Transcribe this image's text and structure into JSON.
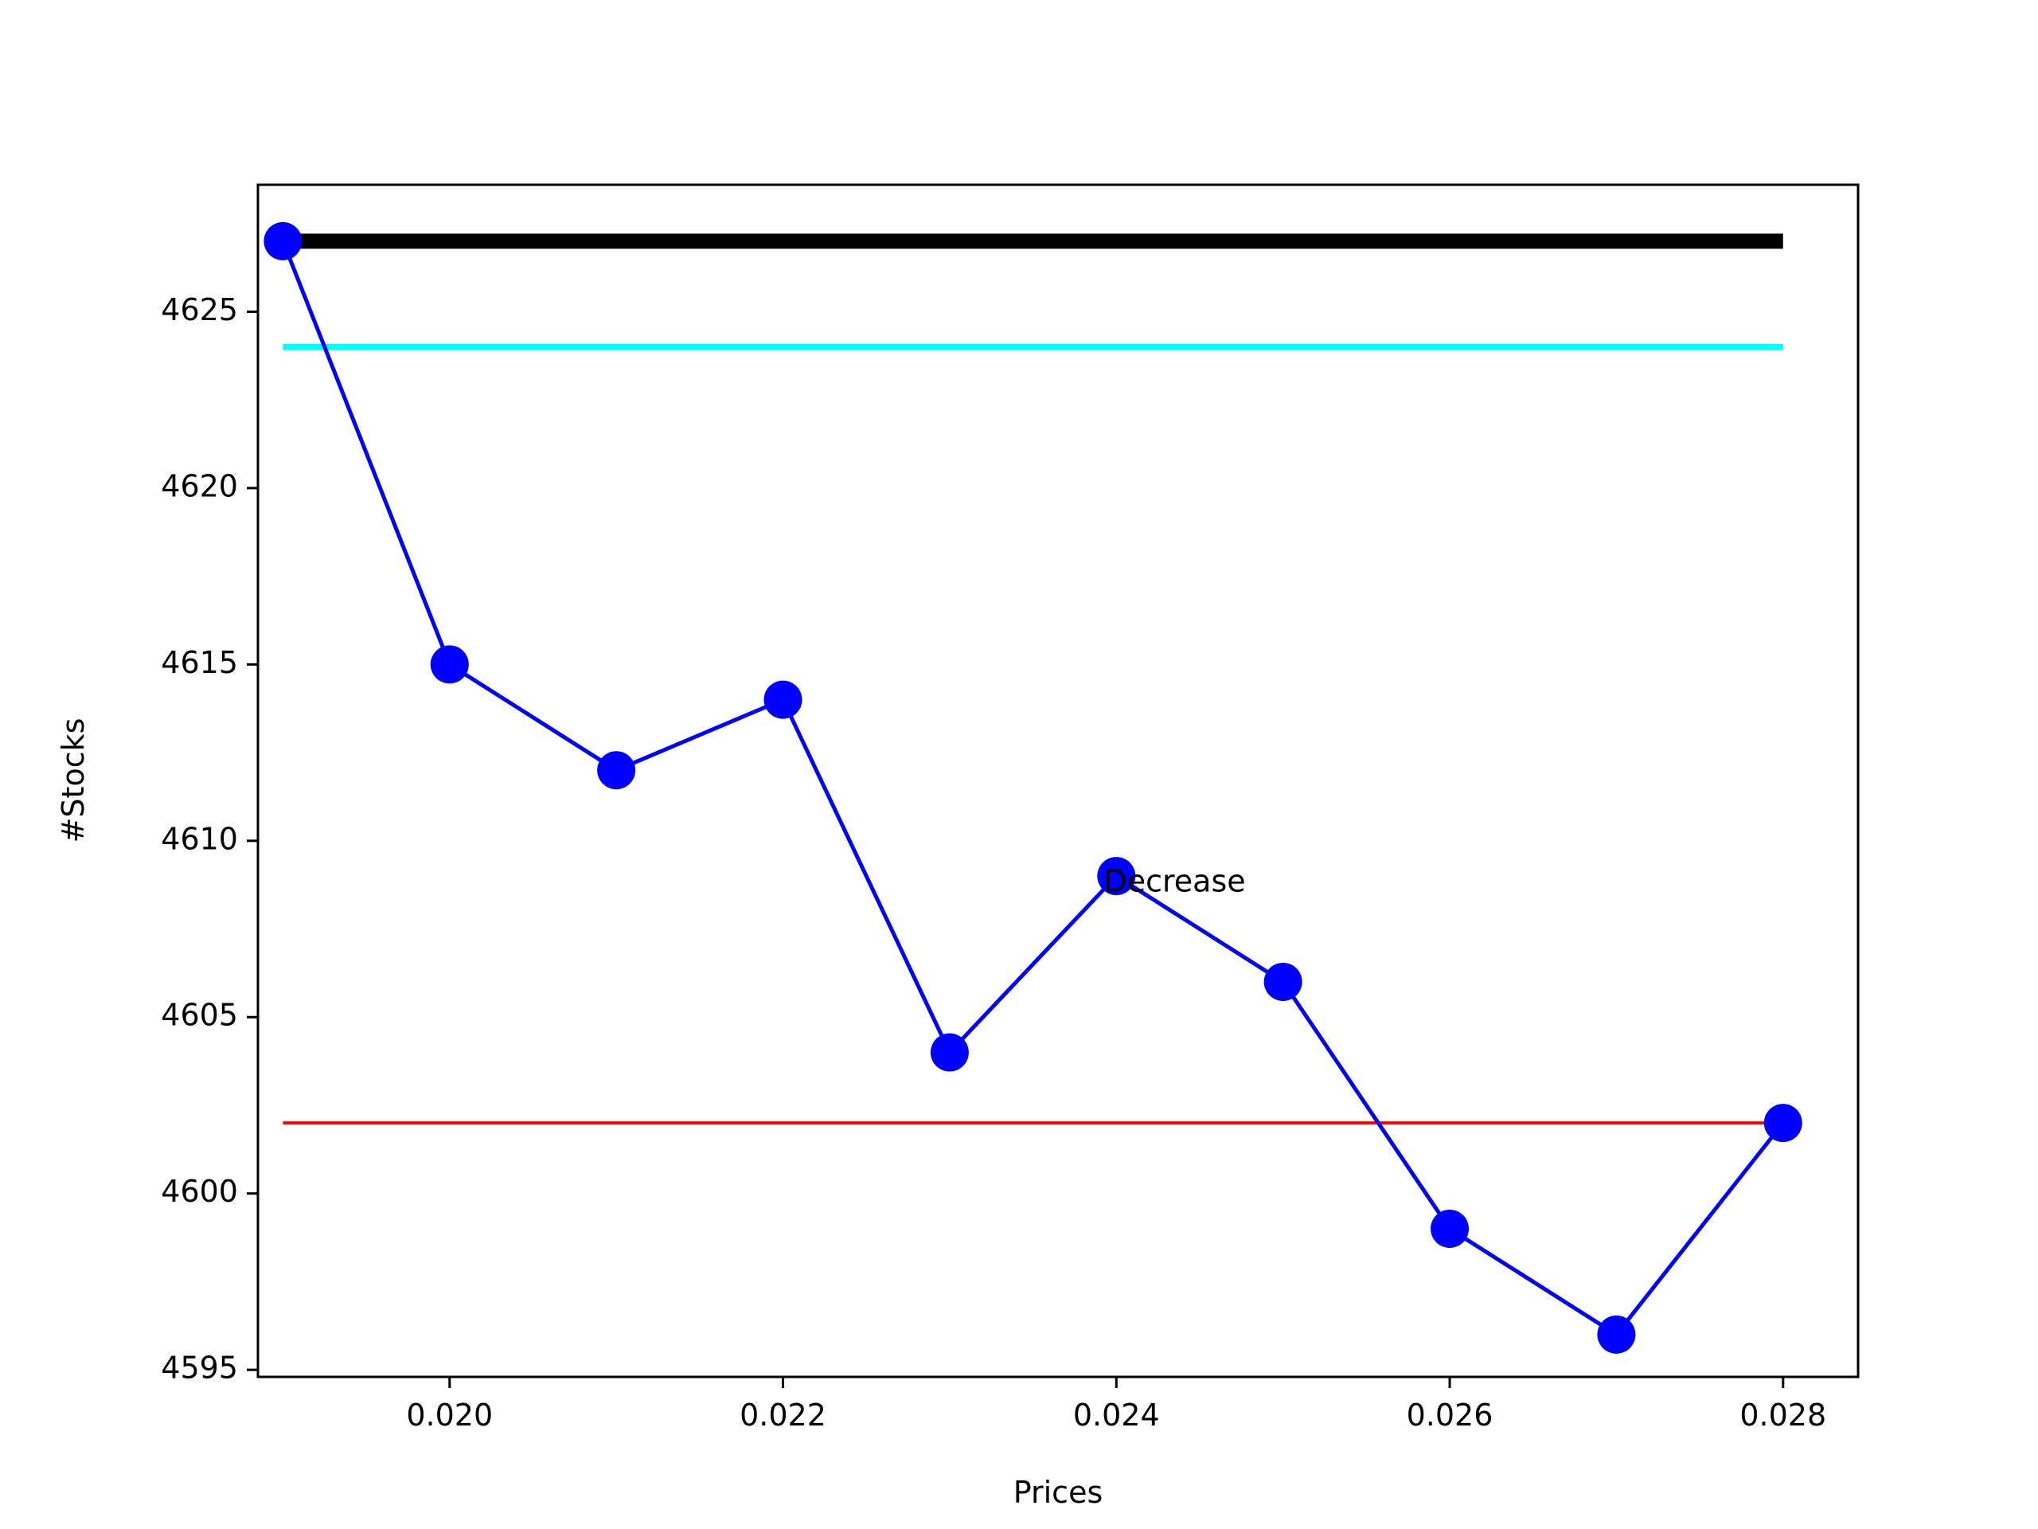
{
  "chart_data": {
    "type": "line",
    "title": "",
    "xlabel": "Prices",
    "ylabel": "#Stocks",
    "xlim": [
      0.01885,
      0.02845
    ],
    "ylim": [
      4594.8,
      4628.6
    ],
    "x_ticks": [
      0.02,
      0.022,
      0.024,
      0.026,
      0.028
    ],
    "x_tick_labels": [
      "0.020",
      "0.022",
      "0.024",
      "0.026",
      "0.028"
    ],
    "y_ticks": [
      4595,
      4600,
      4605,
      4610,
      4615,
      4620,
      4625
    ],
    "y_tick_labels": [
      "4595",
      "4600",
      "4605",
      "4610",
      "4615",
      "4620",
      "4625"
    ],
    "grid": false,
    "series": [
      {
        "color": "#0000ff",
        "marker": "circle",
        "x": [
          0.019,
          0.02,
          0.021,
          0.022,
          0.023,
          0.024,
          0.025,
          0.026,
          0.027,
          0.028
        ],
        "y": [
          4627,
          4615,
          4612,
          4614,
          4604,
          4609,
          4606,
          4599,
          4596,
          4602
        ]
      }
    ],
    "reference_lines": [
      {
        "color": "#000000",
        "y": 4627,
        "x_start": 0.019,
        "x_end": 0.028,
        "weight": "thick"
      },
      {
        "color": "#00ffff",
        "y": 4624,
        "x_start": 0.019,
        "x_end": 0.028,
        "weight": "medium"
      },
      {
        "color": "#ff0000",
        "y": 4602,
        "x_start": 0.019,
        "x_end": 0.028,
        "weight": "thin"
      }
    ],
    "annotations": [
      {
        "text": "Decrease",
        "x": 0.02435,
        "y": 4608.8
      }
    ]
  }
}
